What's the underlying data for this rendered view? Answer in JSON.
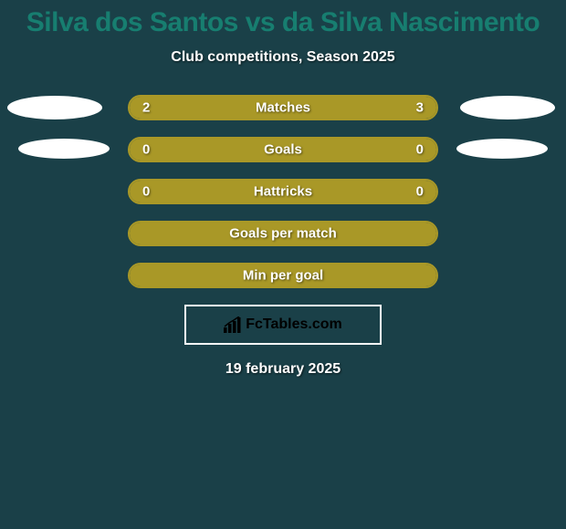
{
  "background_color": "#1a4048",
  "title": {
    "text": "Silva dos Santos vs da Silva Nascimento",
    "color": "#177e70",
    "fontsize": 30
  },
  "subtitle": {
    "text": "Club competitions, Season 2025",
    "fontsize": 16
  },
  "bars": [
    {
      "label": "Matches",
      "left_value": "2",
      "right_value": "3",
      "left_width_pct": 40,
      "left_color": "#a99827",
      "right_color": "#a99827",
      "border_color": "#a99827",
      "show_photos": true,
      "photo_variant": "row1"
    },
    {
      "label": "Goals",
      "left_value": "0",
      "right_value": "0",
      "left_width_pct": 50,
      "left_color": "#a99827",
      "right_color": "#a99827",
      "border_color": "#a99827",
      "show_photos": true,
      "photo_variant": "row2"
    },
    {
      "label": "Hattricks",
      "left_value": "0",
      "right_value": "0",
      "left_width_pct": 50,
      "left_color": "#a99827",
      "right_color": "#a99827",
      "border_color": "#a99827",
      "show_photos": false
    },
    {
      "label": "Goals per match",
      "left_value": "",
      "right_value": "",
      "left_width_pct": 50,
      "left_color": "#a99827",
      "right_color": "#a99827",
      "border_color": "#a99827",
      "show_photos": false
    },
    {
      "label": "Min per goal",
      "left_value": "",
      "right_value": "",
      "left_width_pct": 50,
      "left_color": "#a99827",
      "right_color": "#a99827",
      "border_color": "#a99827",
      "show_photos": false
    }
  ],
  "logo": {
    "text": "FcTables.com",
    "border_color": "#ffffff",
    "text_color": "#000000"
  },
  "date": "19 february 2025"
}
